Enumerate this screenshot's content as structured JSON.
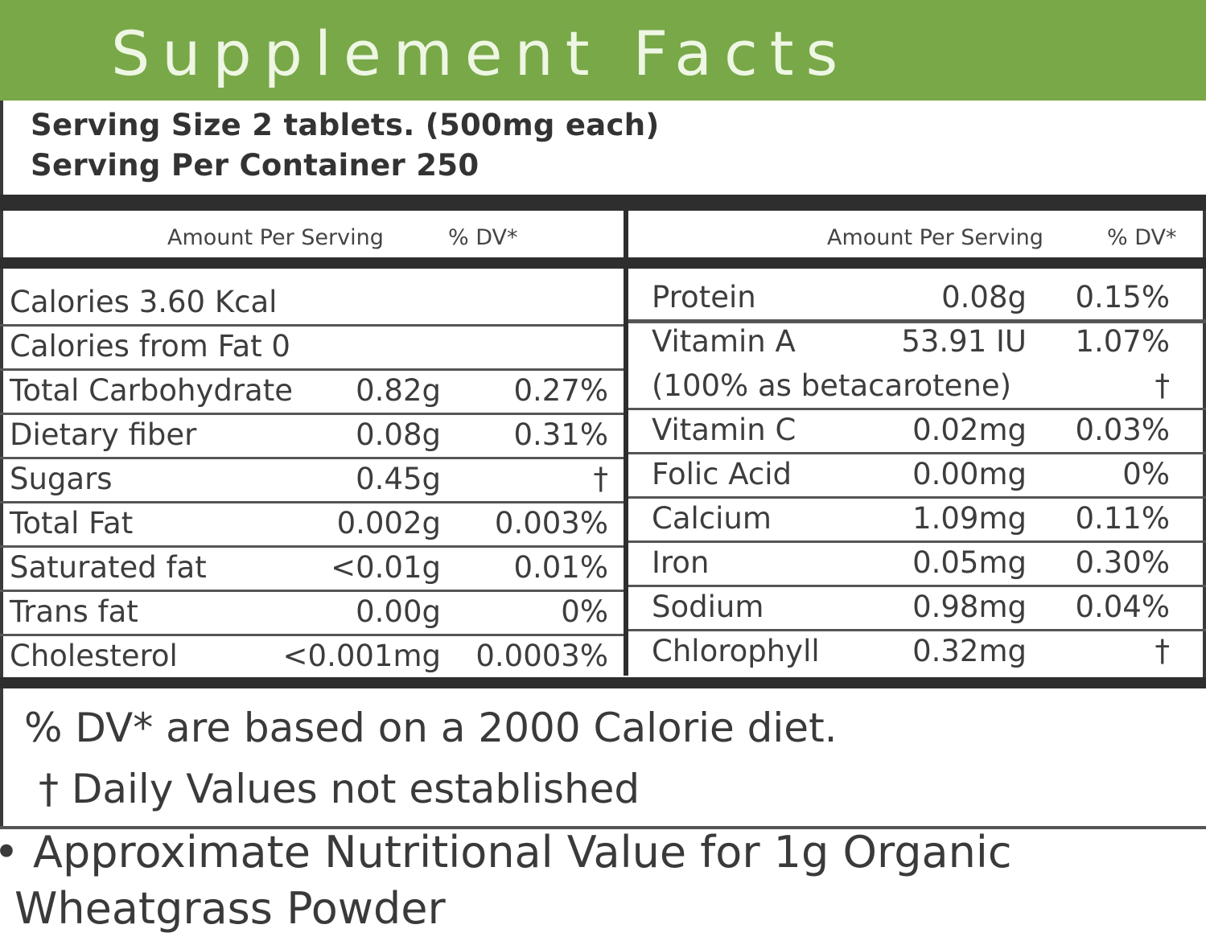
{
  "header": {
    "title": "Supplement Facts"
  },
  "serving": {
    "size": "Serving Size 2 tablets. (500mg each)",
    "per_container": "Serving Per Container 250"
  },
  "columns": {
    "amount": "Amount Per Serving",
    "dv": "% DV*"
  },
  "left_rows": [
    {
      "name": "Calories 3.60 Kcal",
      "amount": "",
      "dv": ""
    },
    {
      "name": "Calories from Fat 0",
      "amount": "",
      "dv": ""
    },
    {
      "name": "Total Carbohydrate",
      "amount": "0.82g",
      "dv": "0.27%"
    },
    {
      "name": "Dietary fiber",
      "amount": "0.08g",
      "dv": "0.31%"
    },
    {
      "name": "Sugars",
      "amount": "0.45g",
      "dv": "†"
    },
    {
      "name": "Total Fat",
      "amount": "0.002g",
      "dv": "0.003%"
    },
    {
      "name": "Saturated fat",
      "amount": "<0.01g",
      "dv": "0.01%"
    },
    {
      "name": "Trans fat",
      "amount": "0.00g",
      "dv": "0%"
    },
    {
      "name": "Cholesterol",
      "amount": "<0.001mg",
      "dv": "0.0003%"
    }
  ],
  "right_rows": [
    {
      "name": "Protein",
      "amount": "0.08g",
      "dv": "0.15%"
    },
    {
      "name": "Vitamin A",
      "amount": "53.91 IU",
      "dv": "1.07%"
    },
    {
      "name": "(100% as betacarotene)",
      "amount": "",
      "dv": "†"
    },
    {
      "name": "Vitamin C",
      "amount": "0.02mg",
      "dv": "0.03%"
    },
    {
      "name": "Folic Acid",
      "amount": "0.00mg",
      "dv": "0%"
    },
    {
      "name": "Calcium",
      "amount": "1.09mg",
      "dv": "0.11%"
    },
    {
      "name": "Iron",
      "amount": "0.05mg",
      "dv": "0.30%"
    },
    {
      "name": "Sodium",
      "amount": "0.98mg",
      "dv": "0.04%"
    },
    {
      "name": "Chlorophyll",
      "amount": "0.32mg",
      "dv": "†"
    }
  ],
  "footnotes": {
    "dv_basis": "% DV* are based on a 2000 Calorie diet.",
    "not_established": "† Daily Values not established"
  },
  "note": {
    "line1": "• Approximate Nutritional Value for 1g Organic",
    "line2": "Wheatgrass Powder"
  }
}
